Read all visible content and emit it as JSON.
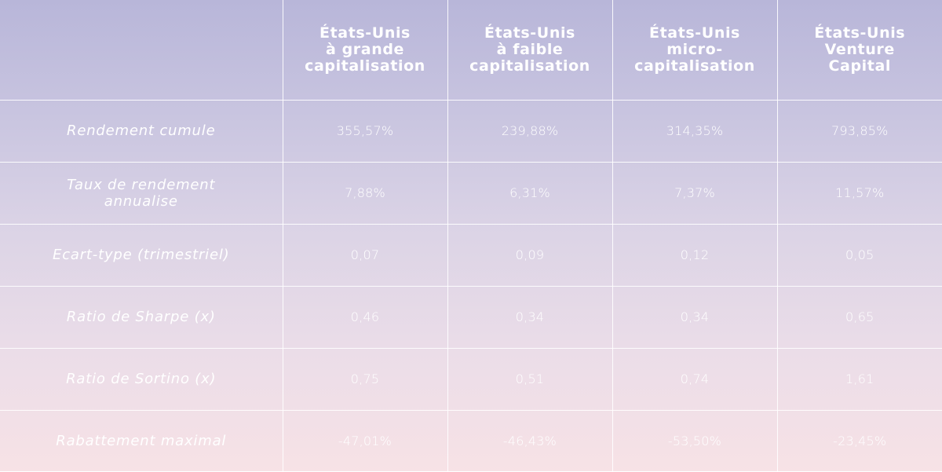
{
  "table": {
    "corner": "",
    "columns": [
      [
        "États-Unis",
        "à grande",
        "capitalisation"
      ],
      [
        "États-Unis",
        "à faible",
        "capitalisation"
      ],
      [
        "États-Unis",
        "micro-",
        "capitalisation"
      ],
      [
        "États-Unis",
        "Venture",
        "Capital"
      ]
    ],
    "rows": [
      {
        "label": [
          "Rendement cumule"
        ],
        "values": [
          "355,57%",
          "239,88%",
          "314,35%",
          "793,85%"
        ]
      },
      {
        "label": [
          "Taux de rendement",
          "annualise"
        ],
        "values": [
          "7,88%",
          "6,31%",
          "7,37%",
          "11,57%"
        ]
      },
      {
        "label": [
          "Ecart-type (trimestriel)"
        ],
        "values": [
          "0,07",
          "0,09",
          "0,12",
          "0,05"
        ]
      },
      {
        "label": [
          "Ratio de Sharpe (x)"
        ],
        "values": [
          "0,46",
          "0,34",
          "0,34",
          "0,65"
        ]
      },
      {
        "label": [
          "Ratio de Sortino (x)"
        ],
        "values": [
          "0,75",
          "0,51",
          "0,74",
          "1,61"
        ]
      },
      {
        "label": [
          "Rabattement maximal"
        ],
        "values": [
          "-47,01%",
          "-46,43%",
          "-53,50%",
          "-23,45%"
        ]
      }
    ]
  },
  "colors": {
    "gradient_top": "#b8b6d9",
    "gradient_bottom": "#f7e2e6",
    "text": "#ffffff",
    "grid_lines": "#ffffff"
  }
}
